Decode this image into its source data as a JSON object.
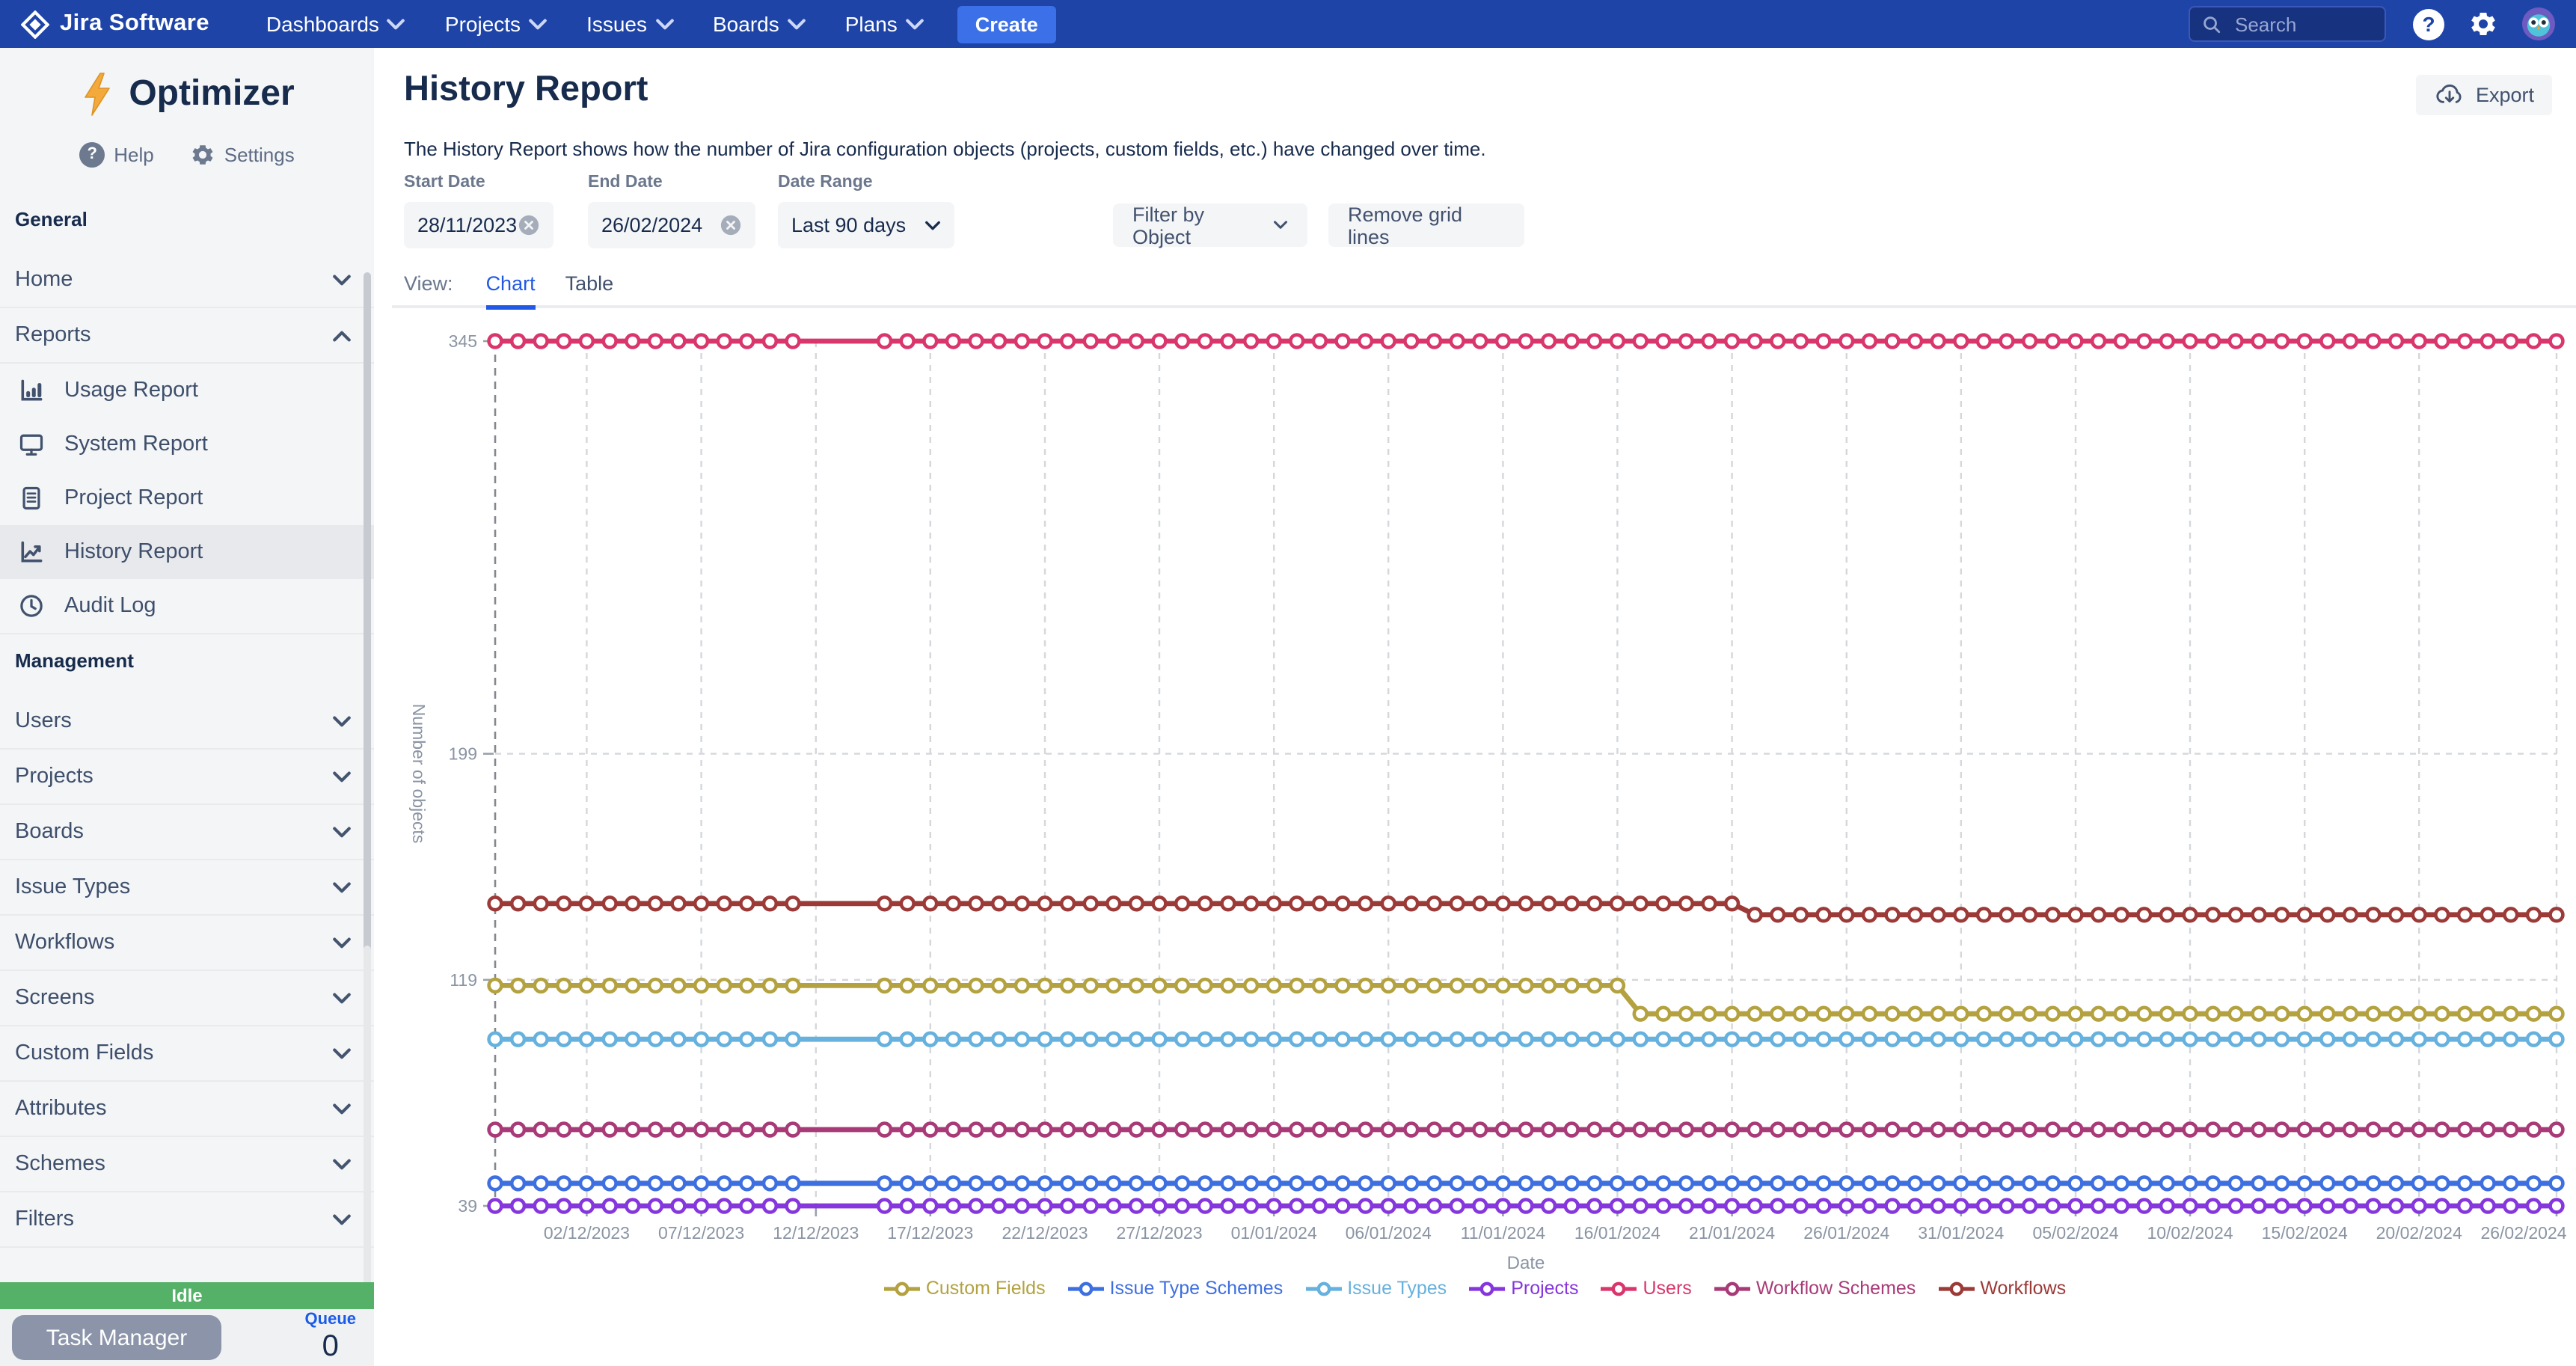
{
  "nav": {
    "brand": "Jira Software",
    "menu": [
      "Dashboards",
      "Projects",
      "Issues",
      "Boards",
      "Plans"
    ],
    "create_label": "Create",
    "search_placeholder": "Search",
    "colors": {
      "bar": "#1e44a8",
      "create_button": "#3b70e8"
    }
  },
  "sidebar": {
    "app_name": "Optimizer",
    "help_label": "Help",
    "settings_label": "Settings",
    "sections": [
      {
        "header": "General",
        "items": [
          {
            "label": "Home",
            "chevron": "down"
          },
          {
            "label": "Reports",
            "chevron": "up",
            "children": [
              {
                "icon": "bar-chart-icon",
                "label": "Usage Report",
                "selected": false
              },
              {
                "icon": "monitor-icon",
                "label": "System Report",
                "selected": false
              },
              {
                "icon": "document-icon",
                "label": "Project Report",
                "selected": false
              },
              {
                "icon": "trend-icon",
                "label": "History Report",
                "selected": true
              },
              {
                "icon": "clock-icon",
                "label": "Audit Log",
                "selected": false
              }
            ]
          }
        ]
      },
      {
        "header": "Management",
        "items": [
          {
            "label": "Users",
            "chevron": "down"
          },
          {
            "label": "Projects",
            "chevron": "down"
          },
          {
            "label": "Boards",
            "chevron": "down"
          },
          {
            "label": "Issue Types",
            "chevron": "down"
          },
          {
            "label": "Workflows",
            "chevron": "down"
          },
          {
            "label": "Screens",
            "chevron": "down"
          },
          {
            "label": "Custom Fields",
            "chevron": "down"
          },
          {
            "label": "Attributes",
            "chevron": "down"
          },
          {
            "label": "Schemes",
            "chevron": "down"
          },
          {
            "label": "Filters",
            "chevron": "down"
          }
        ]
      }
    ],
    "status_label": "Idle",
    "task_manager_label": "Task Manager",
    "queue_label": "Queue",
    "queue_count": "0",
    "colors": {
      "status_bg": "#55b168",
      "task_button": "#8b94a9",
      "queue_label": "#1a5ce8"
    }
  },
  "main": {
    "title": "History Report",
    "description": "The History Report shows how the number of Jira configuration objects (projects, custom fields, etc.) have changed over time.",
    "export_label": "Export",
    "filters": {
      "start_date_label": "Start Date",
      "start_date_value": "28/11/2023",
      "end_date_label": "End Date",
      "end_date_value": "26/02/2024",
      "date_range_label": "Date Range",
      "date_range_value": "Last 90 days",
      "filter_by_object_label": "Filter by Object",
      "remove_grid_lines_label": "Remove grid lines"
    },
    "view_label": "View:",
    "tabs": [
      {
        "label": "Chart",
        "active": true
      },
      {
        "label": "Table",
        "active": false
      }
    ]
  },
  "chart_data": {
    "type": "line",
    "title": "",
    "xlabel": "Date",
    "ylabel": "Number of objects",
    "x_start": "28/11/2023",
    "x_end": "26/02/2024",
    "x_interval": "daily",
    "x_tick_labels": [
      "02/12/2023",
      "07/12/2023",
      "12/12/2023",
      "17/12/2023",
      "22/12/2023",
      "27/12/2023",
      "01/01/2024",
      "06/01/2024",
      "11/01/2024",
      "16/01/2024",
      "21/01/2024",
      "26/01/2024",
      "31/01/2024",
      "05/02/2024",
      "10/02/2024",
      "15/02/2024",
      "20/02/2024",
      "26/02/2024"
    ],
    "y_ticks": [
      345,
      199,
      119,
      39
    ],
    "y_top": 345,
    "y_bottom": 39,
    "grid": true,
    "legend_position": "bottom",
    "marker_gap_dates": [
      "12/12/2023",
      "13/12/2023",
      "14/12/2023"
    ],
    "series": [
      {
        "name": "Custom Fields",
        "color": "#b3a23f",
        "segments": [
          {
            "from": "28/11/2023",
            "to": "16/01/2024",
            "value": 117
          },
          {
            "from": "17/01/2024",
            "to": "26/02/2024",
            "value": 107
          }
        ]
      },
      {
        "name": "Issue Type Schemes",
        "color": "#3e6fe0",
        "segments": [
          {
            "from": "28/11/2023",
            "to": "26/02/2024",
            "value": 47
          }
        ]
      },
      {
        "name": "Issue Types",
        "color": "#66b1de",
        "segments": [
          {
            "from": "28/11/2023",
            "to": "26/02/2024",
            "value": 98
          }
        ]
      },
      {
        "name": "Projects",
        "color": "#8536dd",
        "segments": [
          {
            "from": "28/11/2023",
            "to": "26/02/2024",
            "value": 39
          }
        ]
      },
      {
        "name": "Users",
        "color": "#d9366b",
        "segments": [
          {
            "from": "28/11/2023",
            "to": "26/02/2024",
            "value": 345
          }
        ]
      },
      {
        "name": "Workflow Schemes",
        "color": "#a93a78",
        "segments": [
          {
            "from": "28/11/2023",
            "to": "26/02/2024",
            "value": 66
          }
        ]
      },
      {
        "name": "Workflows",
        "color": "#9c3a38",
        "segments": [
          {
            "from": "28/11/2023",
            "to": "21/01/2024",
            "value": 146
          },
          {
            "from": "22/01/2024",
            "to": "26/02/2024",
            "value": 142
          }
        ]
      }
    ]
  }
}
